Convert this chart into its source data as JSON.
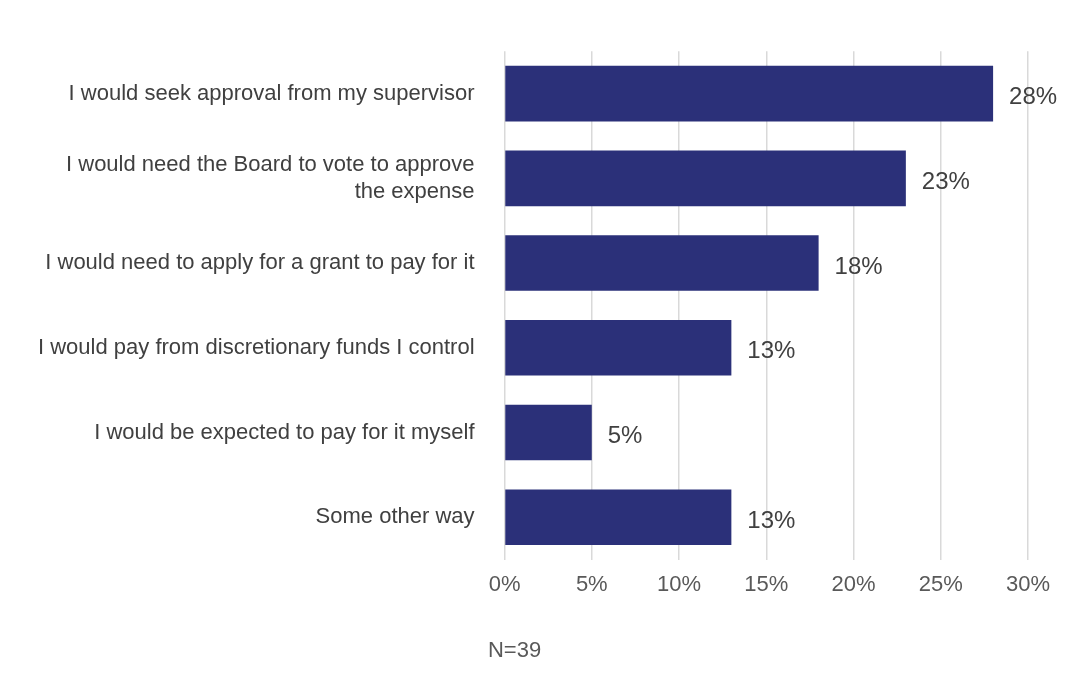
{
  "chart_data": {
    "type": "bar",
    "orientation": "horizontal",
    "categories": [
      "I would seek approval from my supervisor",
      "I would need the Board to vote to approve the expense",
      "I would need to apply for a grant to pay for it",
      "I would pay from discretionary funds I control",
      "I would be expected to pay for it myself",
      "Some other way"
    ],
    "values": [
      28,
      23,
      18,
      13,
      5,
      13
    ],
    "value_labels": [
      "28%",
      "23%",
      "18%",
      "13%",
      "5%",
      "13%"
    ],
    "color": "#2b3079",
    "xlim": [
      0,
      30
    ],
    "xticks": [
      {
        "value": 0,
        "label": "0%"
      },
      {
        "value": 5,
        "label": "5%"
      },
      {
        "value": 10,
        "label": "10%"
      },
      {
        "value": 15,
        "label": "15%"
      },
      {
        "value": 20,
        "label": "20%"
      },
      {
        "value": 25,
        "label": "25%"
      },
      {
        "value": 30,
        "label": "30%"
      }
    ],
    "grid": "x",
    "annotations": [
      "N=39"
    ]
  }
}
